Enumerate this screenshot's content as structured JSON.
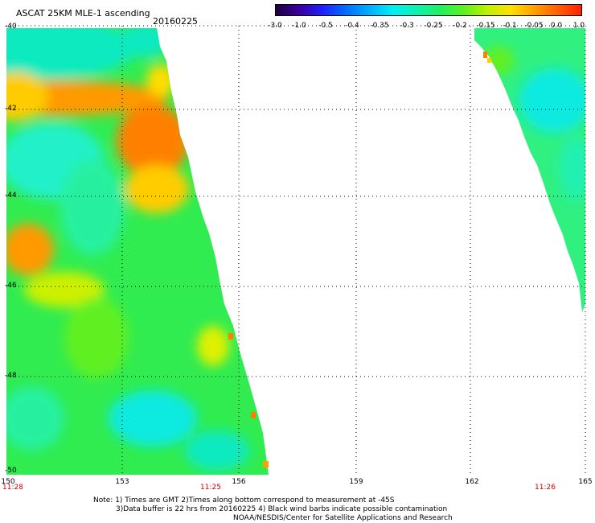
{
  "header": {
    "title": "ASCAT 25KM MLE-1 ascending",
    "date": "20160225"
  },
  "colorbar": {
    "labels": [
      "-3.0",
      "-1.0",
      "-0.5",
      "-0.4",
      "-0.35",
      "-0.3",
      "-0.25",
      "-0.2",
      "-0.15",
      "-0.1",
      "-0.05",
      "0.0",
      "1.0"
    ],
    "colors": [
      "#200040",
      "#3a00a0",
      "#2020ff",
      "#0070ff",
      "#00b0ff",
      "#00f0f0",
      "#10f0b0",
      "#20f060",
      "#60f020",
      "#c0f000",
      "#ffe000",
      "#ffa000",
      "#ff6000",
      "#ff2000"
    ]
  },
  "map": {
    "lat_labels": [
      "-40",
      "-42",
      "-44",
      "-46",
      "-48",
      "-50"
    ],
    "lon_labels": [
      "150",
      "153",
      "156",
      "159",
      "162",
      "165"
    ],
    "time_labels": [
      "11:28",
      "11:25",
      "11:26"
    ]
  },
  "notes": {
    "line1": "Note: 1) Times are GMT 2)Times along bottom correspond to measurement at -45S",
    "line2": "3)Data buffer is 22 hrs from 20160225 4) Black wind barbs indicate possible contamination",
    "line3": "NOAA/NESDIS/Center for Satellite Applications and Research"
  }
}
